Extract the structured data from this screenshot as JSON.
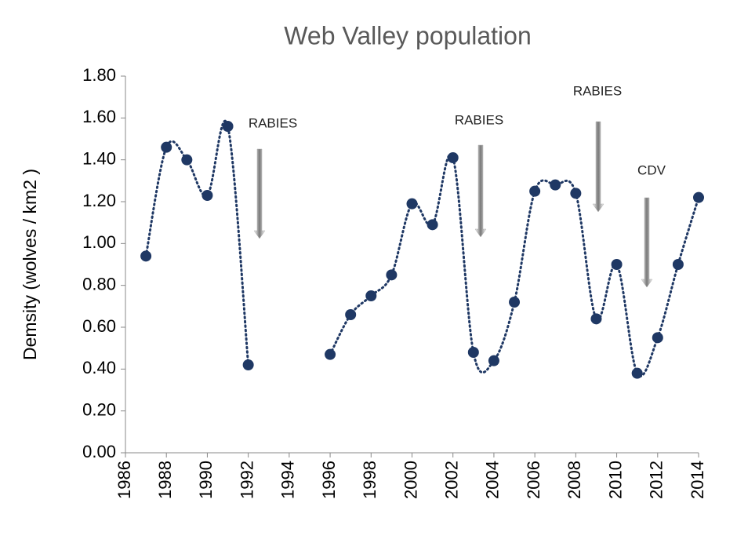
{
  "chart_data": {
    "type": "line",
    "title": "Web Valley population",
    "y_label": "Demsity  (wolves / km2 )",
    "color": "#1f3864",
    "x": [
      1987,
      1988,
      1989,
      1990,
      1991,
      1992,
      1993,
      1994,
      1995,
      1996,
      1997,
      1998,
      1999,
      2000,
      2001,
      2002,
      2003,
      2004,
      2005,
      2006,
      2007,
      2008,
      2009,
      2010,
      2011,
      2012,
      2013,
      2014
    ],
    "values": [
      0.94,
      1.46,
      1.4,
      1.23,
      1.56,
      0.42,
      null,
      null,
      null,
      0.47,
      0.66,
      0.75,
      0.85,
      1.19,
      1.09,
      1.41,
      0.48,
      0.44,
      0.72,
      1.25,
      1.28,
      1.24,
      0.64,
      0.9,
      0.38,
      0.55,
      0.9,
      1.22
    ],
    "xlim": [
      1986,
      2014
    ],
    "xticks": [
      1986,
      1988,
      1990,
      1992,
      1994,
      1996,
      1998,
      2000,
      2002,
      2004,
      2006,
      2008,
      2010,
      2012,
      2014
    ],
    "ylim": [
      0,
      1.8
    ],
    "yticks": [
      {
        "value": 0,
        "label": "0.00"
      },
      {
        "value": 0.2,
        "label": "0.20"
      },
      {
        "value": 0.4,
        "label": "0.40"
      },
      {
        "value": 0.6,
        "label": "0.60"
      },
      {
        "value": 0.8,
        "label": "0.80"
      },
      {
        "value": 1,
        "label": "1.00"
      },
      {
        "value": 1.2,
        "label": "1.20"
      },
      {
        "value": 1.4,
        "label": "1.40"
      },
      {
        "value": 1.6,
        "label": "1.60"
      },
      {
        "value": 1.8,
        "label": "1.80"
      }
    ],
    "annotations": [
      "RABIES",
      "RABIES",
      "RABIES",
      "CDV"
    ]
  }
}
